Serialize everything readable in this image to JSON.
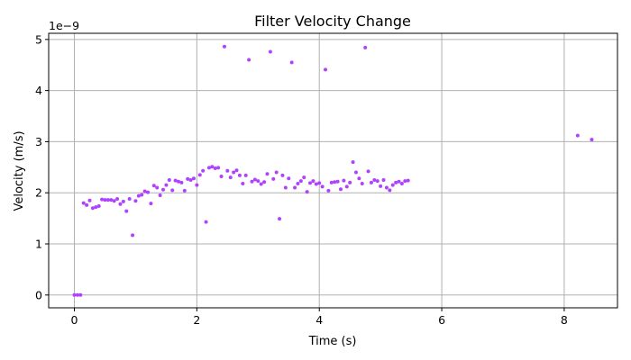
{
  "chart_data": {
    "type": "scatter",
    "title": "Filter Velocity Change",
    "xlabel": "Time (s)",
    "ylabel": "Velocity (m/s)",
    "y_scale_note": "1e−9",
    "xlim": [
      -0.42,
      8.87
    ],
    "ylim": [
      -0.25,
      5.12
    ],
    "xticks": [
      0,
      2,
      4,
      6,
      8
    ],
    "yticks": [
      0,
      1,
      2,
      3,
      4,
      5
    ],
    "grid": true,
    "marker_color": "#b042ff",
    "series": [
      {
        "x": [
          0.0,
          0.05,
          0.1,
          0.15,
          0.2,
          0.25,
          0.3,
          0.35,
          0.4,
          0.45,
          0.5,
          0.55,
          0.6,
          0.65,
          0.7,
          0.75,
          0.8,
          0.85,
          0.9,
          0.95,
          1.0,
          1.05,
          1.1,
          1.15,
          1.2,
          1.25,
          1.3,
          1.35,
          1.4,
          1.45,
          1.5,
          1.55,
          1.6,
          1.65,
          1.7,
          1.75,
          1.8,
          1.85,
          1.9,
          1.95,
          2.0,
          2.05,
          2.1,
          2.15,
          2.2,
          2.25,
          2.3,
          2.35,
          2.4,
          2.45,
          2.5,
          2.55,
          2.6,
          2.65,
          2.7,
          2.75,
          2.8,
          2.85,
          2.9,
          2.95,
          3.0,
          3.05,
          3.1,
          3.15,
          3.2,
          3.25,
          3.3,
          3.35,
          3.4,
          3.45,
          3.5,
          3.55,
          3.6,
          3.65,
          3.7,
          3.75,
          3.8,
          3.85,
          3.9,
          3.95,
          4.0,
          4.05,
          4.1,
          4.15,
          4.2,
          4.25,
          4.3,
          4.35,
          4.4,
          4.45,
          4.5,
          4.55,
          4.6,
          4.65,
          4.7,
          4.75,
          4.8,
          4.85,
          4.9,
          4.95,
          5.0,
          5.05,
          5.1,
          5.15,
          5.2,
          5.25,
          5.3,
          5.35,
          5.4,
          5.45,
          8.22,
          8.45
        ],
        "y": [
          0.0,
          0.0,
          0.0,
          1.8,
          1.76,
          1.85,
          1.7,
          1.72,
          1.74,
          1.87,
          1.86,
          1.86,
          1.86,
          1.84,
          1.88,
          1.78,
          1.83,
          1.64,
          1.88,
          1.17,
          1.84,
          1.94,
          1.96,
          2.03,
          2.01,
          1.79,
          2.14,
          2.1,
          1.95,
          2.06,
          2.15,
          2.25,
          2.05,
          2.24,
          2.22,
          2.2,
          2.04,
          2.27,
          2.25,
          2.28,
          2.15,
          2.35,
          2.43,
          1.43,
          2.49,
          2.51,
          2.48,
          2.49,
          2.32,
          4.86,
          2.43,
          2.3,
          2.4,
          2.44,
          2.34,
          2.18,
          2.34,
          4.6,
          2.22,
          2.26,
          2.23,
          2.17,
          2.21,
          2.37,
          4.76,
          2.27,
          2.4,
          1.49,
          2.34,
          2.1,
          2.28,
          4.55,
          2.1,
          2.18,
          2.23,
          2.3,
          2.02,
          2.19,
          2.23,
          2.17,
          2.19,
          2.12,
          4.41,
          2.04,
          2.2,
          2.21,
          2.22,
          2.07,
          2.24,
          2.12,
          2.2,
          2.6,
          2.4,
          2.28,
          2.18,
          4.84,
          2.42,
          2.2,
          2.25,
          2.23,
          2.13,
          2.25,
          2.1,
          2.05,
          2.15,
          2.2,
          2.22,
          2.18,
          2.23,
          2.24,
          3.12,
          3.04
        ]
      }
    ]
  }
}
